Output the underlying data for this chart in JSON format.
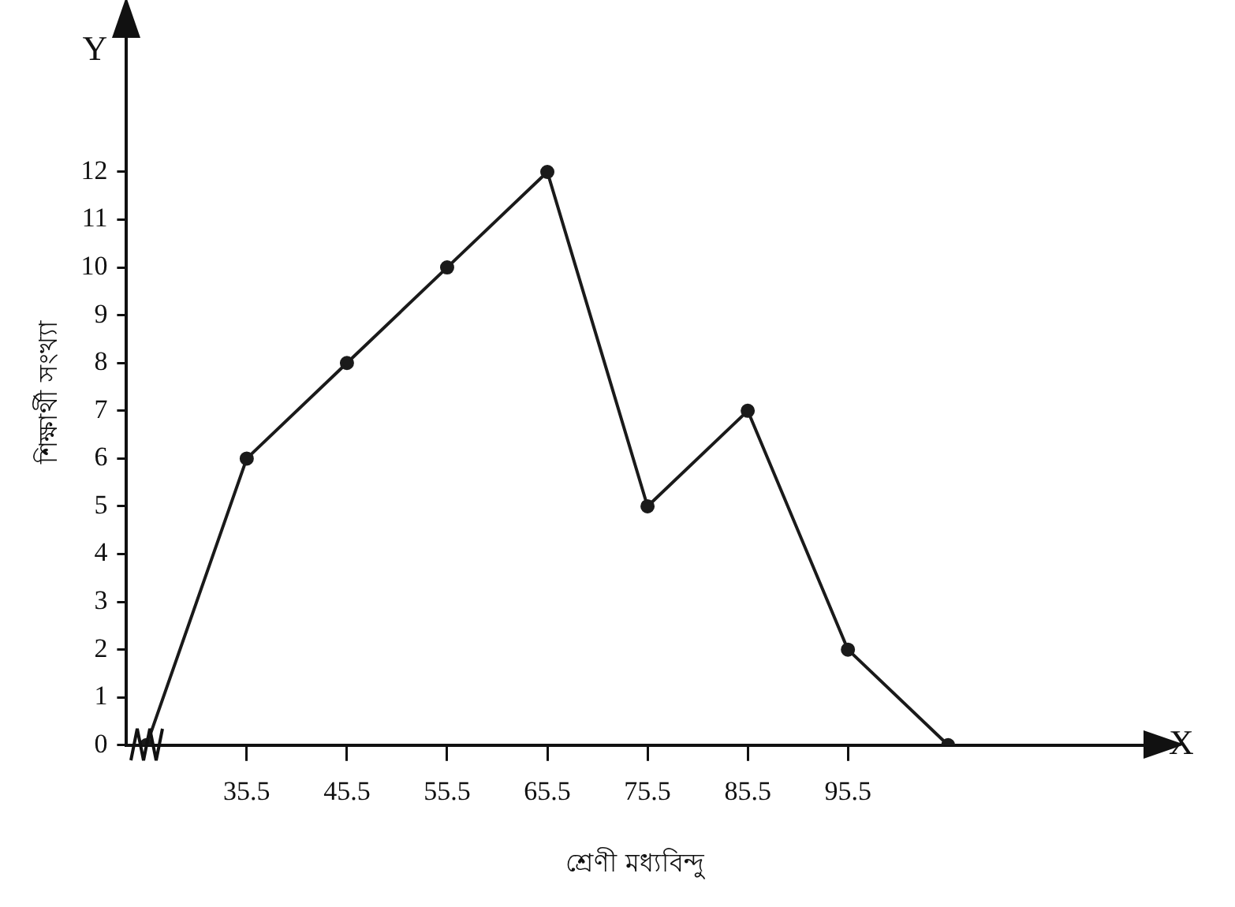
{
  "chart_data": {
    "type": "line",
    "xlabel": "শ্রেণী মধ্যবিন্দু",
    "ylabel": "শিক্ষার্থী সংখ্যা",
    "annotations": [
      "Y",
      "X"
    ],
    "x": [
      25.5,
      35.5,
      45.5,
      55.5,
      65.5,
      75.5,
      85.5,
      95.5,
      105.5
    ],
    "series": [
      {
        "color": "#1a1a1a",
        "values": [
          0,
          6,
          8,
          10,
          12,
          5,
          7,
          2,
          0
        ]
      }
    ],
    "xlim": [
      23.5,
      125
    ],
    "xticks": [
      35.5,
      45.5,
      55.5,
      65.5,
      75.5,
      85.5,
      95.5
    ],
    "ylim": [
      0,
      14.8
    ],
    "yticks": [
      0,
      1,
      2,
      3,
      4,
      5,
      6,
      7,
      8,
      9,
      10,
      11,
      12
    ],
    "grid": false,
    "legend": false,
    "marker": "circle",
    "line_style": "solid"
  }
}
